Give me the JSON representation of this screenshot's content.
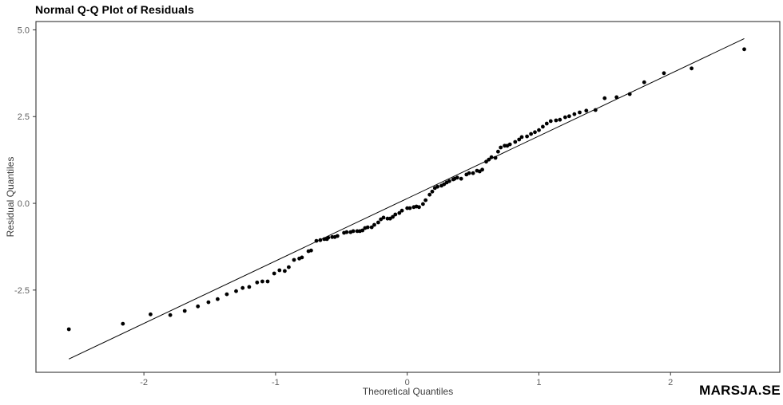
{
  "page": {
    "watermark": "MARSJA.SE"
  },
  "chart_data": {
    "type": "scatter",
    "subtype": "normal-qq-plot",
    "title": "Normal Q-Q Plot of Residuals",
    "xlabel": "Theoretical Quantiles",
    "ylabel": "Residual Quantiles",
    "xlim": [
      -2.82,
      2.83
    ],
    "ylim": [
      -4.87,
      5.24
    ],
    "x_ticks": [
      -2,
      -1,
      0,
      1,
      2
    ],
    "x_tick_labels": [
      "-2",
      "-1",
      "0",
      "1",
      "2"
    ],
    "y_ticks": [
      -2.5,
      0,
      2.5,
      5
    ],
    "y_tick_labels": [
      "-2.5",
      "0.0",
      "2.5",
      "5.0"
    ],
    "grid": false,
    "legend": "none",
    "colors": {
      "point": "#000000",
      "ref_line": "#000000",
      "panel_border": "#333333",
      "tick_mark": "#333333",
      "tick_label": "#606060"
    },
    "ref_line": {
      "slope": 1.8,
      "intercept": 0.14,
      "x_from": -2.57,
      "x_to": 2.56
    },
    "points": [
      [
        -2.57,
        -3.63
      ],
      [
        -2.16,
        -3.47
      ],
      [
        -1.95,
        -3.2
      ],
      [
        -1.8,
        -3.22
      ],
      [
        -1.69,
        -3.1
      ],
      [
        -1.59,
        -2.97
      ],
      [
        -1.51,
        -2.85
      ],
      [
        -1.44,
        -2.76
      ],
      [
        -1.37,
        -2.62
      ],
      [
        -1.3,
        -2.53
      ],
      [
        -1.25,
        -2.44
      ],
      [
        -1.2,
        -2.41
      ],
      [
        -1.14,
        -2.28
      ],
      [
        -1.1,
        -2.25
      ],
      [
        -1.06,
        -2.25
      ],
      [
        -1.01,
        -2.02
      ],
      [
        -0.97,
        -1.93
      ],
      [
        -0.93,
        -1.95
      ],
      [
        -0.9,
        -1.84
      ],
      [
        -0.86,
        -1.63
      ],
      [
        -0.82,
        -1.59
      ],
      [
        -0.8,
        -1.56
      ],
      [
        -0.75,
        -1.38
      ],
      [
        -0.73,
        -1.36
      ],
      [
        -0.69,
        -1.08
      ],
      [
        -0.66,
        -1.06
      ],
      [
        -0.63,
        -1.03
      ],
      [
        -0.61,
        -1.03
      ],
      [
        -0.6,
        -0.99
      ],
      [
        -0.57,
        -0.97
      ],
      [
        -0.55,
        -0.97
      ],
      [
        -0.53,
        -0.94
      ],
      [
        -0.48,
        -0.85
      ],
      [
        -0.46,
        -0.83
      ],
      [
        -0.43,
        -0.83
      ],
      [
        -0.41,
        -0.8
      ],
      [
        -0.38,
        -0.8
      ],
      [
        -0.36,
        -0.8
      ],
      [
        -0.34,
        -0.78
      ],
      [
        -0.32,
        -0.71
      ],
      [
        -0.3,
        -0.69
      ],
      [
        -0.27,
        -0.69
      ],
      [
        -0.25,
        -0.62
      ],
      [
        -0.22,
        -0.55
      ],
      [
        -0.2,
        -0.46
      ],
      [
        -0.18,
        -0.41
      ],
      [
        -0.15,
        -0.44
      ],
      [
        -0.13,
        -0.44
      ],
      [
        -0.11,
        -0.39
      ],
      [
        -0.09,
        -0.32
      ],
      [
        -0.06,
        -0.28
      ],
      [
        -0.04,
        -0.21
      ],
      [
        0.0,
        -0.14
      ],
      [
        0.02,
        -0.14
      ],
      [
        0.05,
        -0.11
      ],
      [
        0.07,
        -0.09
      ],
      [
        0.09,
        -0.11
      ],
      [
        0.12,
        -0.02
      ],
      [
        0.14,
        0.09
      ],
      [
        0.17,
        0.25
      ],
      [
        0.19,
        0.34
      ],
      [
        0.21,
        0.44
      ],
      [
        0.23,
        0.48
      ],
      [
        0.26,
        0.51
      ],
      [
        0.28,
        0.55
      ],
      [
        0.3,
        0.6
      ],
      [
        0.32,
        0.64
      ],
      [
        0.35,
        0.69
      ],
      [
        0.36,
        0.71
      ],
      [
        0.38,
        0.74
      ],
      [
        0.41,
        0.71
      ],
      [
        0.45,
        0.83
      ],
      [
        0.47,
        0.87
      ],
      [
        0.5,
        0.87
      ],
      [
        0.53,
        0.94
      ],
      [
        0.55,
        0.92
      ],
      [
        0.57,
        0.97
      ],
      [
        0.6,
        1.2
      ],
      [
        0.62,
        1.26
      ],
      [
        0.64,
        1.33
      ],
      [
        0.67,
        1.31
      ],
      [
        0.69,
        1.49
      ],
      [
        0.71,
        1.61
      ],
      [
        0.74,
        1.66
      ],
      [
        0.76,
        1.66
      ],
      [
        0.78,
        1.7
      ],
      [
        0.82,
        1.77
      ],
      [
        0.85,
        1.84
      ],
      [
        0.87,
        1.91
      ],
      [
        0.91,
        1.93
      ],
      [
        0.94,
        2.0
      ],
      [
        0.97,
        2.05
      ],
      [
        1.0,
        2.11
      ],
      [
        1.03,
        2.21
      ],
      [
        1.06,
        2.3
      ],
      [
        1.09,
        2.37
      ],
      [
        1.13,
        2.39
      ],
      [
        1.16,
        2.41
      ],
      [
        1.2,
        2.48
      ],
      [
        1.23,
        2.51
      ],
      [
        1.27,
        2.57
      ],
      [
        1.31,
        2.62
      ],
      [
        1.36,
        2.67
      ],
      [
        1.43,
        2.69
      ],
      [
        1.5,
        3.03
      ],
      [
        1.59,
        3.06
      ],
      [
        1.69,
        3.15
      ],
      [
        1.8,
        3.49
      ],
      [
        1.95,
        3.75
      ],
      [
        2.16,
        3.89
      ],
      [
        2.56,
        4.44
      ]
    ]
  }
}
